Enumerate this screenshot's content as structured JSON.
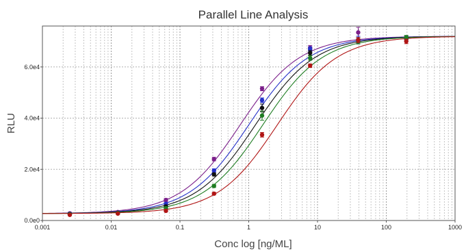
{
  "chart_data": {
    "type": "line",
    "title": "Parallel Line Analysis",
    "xlabel": "Conc log [ng/ML]",
    "ylabel": "RLU",
    "x_scale": "log",
    "xlim": [
      0.001,
      1000
    ],
    "ylim": [
      0,
      76000
    ],
    "grid": true,
    "x_ticks": [
      {
        "value": 0.001,
        "label": "0.001"
      },
      {
        "value": 0.01,
        "label": "0.01"
      },
      {
        "value": 0.1,
        "label": "0.1"
      },
      {
        "value": 1,
        "label": "1"
      },
      {
        "value": 10,
        "label": "10"
      },
      {
        "value": 100,
        "label": "100"
      },
      {
        "value": 1000,
        "label": "1000"
      }
    ],
    "y_ticks": [
      {
        "value": 0,
        "label": "0.0e0"
      },
      {
        "value": 20000,
        "label": "2.0e4"
      },
      {
        "value": 40000,
        "label": "4.0e4"
      },
      {
        "value": 60000,
        "label": "6.0e4"
      }
    ],
    "x": [
      0.0025,
      0.0125,
      0.0625,
      0.3125,
      1.5625,
      7.8125,
      39.0625,
      195.3
    ],
    "series": [
      {
        "color": "#7b1f8a",
        "values": [
          2800,
          3300,
          8000,
          24000,
          51500,
          67500,
          73500,
          71000
        ],
        "errors": [
          400,
          400,
          600,
          700,
          800,
          900,
          2000,
          900
        ]
      },
      {
        "color": "#2430c8",
        "values": [
          2600,
          3100,
          6500,
          19500,
          47000,
          67000,
          70500,
          71000
        ],
        "errors": [
          300,
          300,
          500,
          700,
          900,
          900,
          1500,
          800
        ]
      },
      {
        "color": "#111111",
        "values": [
          2500,
          3000,
          5500,
          18000,
          44000,
          65500,
          70500,
          71500
        ],
        "errors": [
          300,
          300,
          500,
          600,
          1500,
          900,
          1000,
          800
        ]
      },
      {
        "color": "#1e7d22",
        "values": [
          2400,
          2900,
          4800,
          13500,
          41000,
          63500,
          70000,
          71500
        ],
        "errors": [
          300,
          300,
          500,
          600,
          1800,
          900,
          1000,
          800
        ]
      },
      {
        "color": "#b01515",
        "values": [
          2200,
          2700,
          3800,
          10500,
          33500,
          60500,
          70500,
          70000
        ],
        "errors": [
          300,
          300,
          400,
          500,
          900,
          700,
          1000,
          900
        ]
      }
    ],
    "curves": [
      {
        "color": "#7b1f8a",
        "bottom": 2700,
        "top": 72000,
        "ec50": 0.75,
        "hill": 1.0
      },
      {
        "color": "#2430c8",
        "bottom": 2700,
        "top": 72000,
        "ec50": 1.0,
        "hill": 1.0
      },
      {
        "color": "#111111",
        "bottom": 2700,
        "top": 72000,
        "ec50": 1.25,
        "hill": 1.0
      },
      {
        "color": "#1e7d22",
        "bottom": 2700,
        "top": 72000,
        "ec50": 1.6,
        "hill": 1.0
      },
      {
        "color": "#b01515",
        "bottom": 2700,
        "top": 72000,
        "ec50": 2.6,
        "hill": 1.0
      }
    ]
  }
}
